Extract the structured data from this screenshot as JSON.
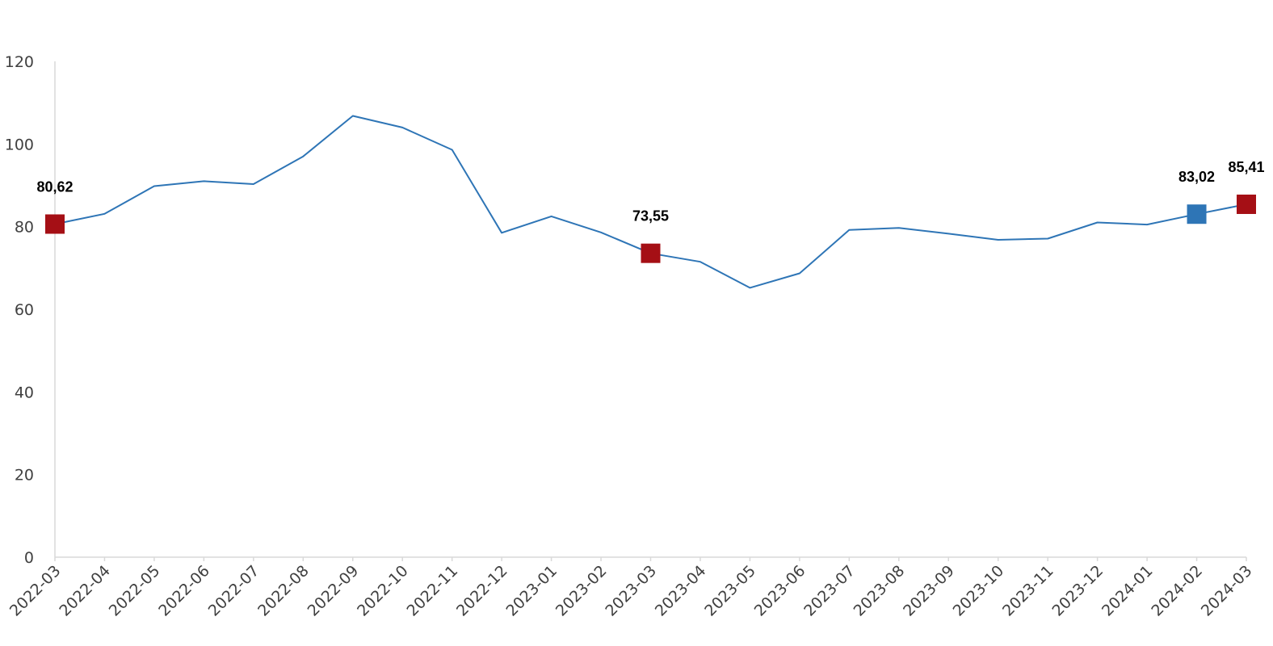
{
  "chart_data": {
    "type": "line",
    "title": "",
    "xlabel": "",
    "ylabel": "",
    "ylim": [
      0,
      120
    ],
    "yticks": [
      0,
      20,
      40,
      60,
      80,
      100,
      120
    ],
    "grid": false,
    "categories": [
      "2022-03",
      "2022-04",
      "2022-05",
      "2022-06",
      "2022-07",
      "2022-08",
      "2022-09",
      "2022-10",
      "2022-11",
      "2022-12",
      "2023-01",
      "2023-02",
      "2023-03",
      "2023-04",
      "2023-05",
      "2023-06",
      "2023-07",
      "2023-08",
      "2023-09",
      "2023-10",
      "2023-11",
      "2023-12",
      "2024-01",
      "2024-02",
      "2024-03"
    ],
    "series": [
      {
        "values": [
          80.62,
          83.1,
          89.8,
          91.0,
          90.3,
          97.0,
          106.8,
          104.0,
          98.6,
          78.5,
          82.5,
          78.6,
          73.55,
          71.5,
          65.2,
          68.7,
          79.2,
          79.7,
          78.3,
          76.8,
          77.1,
          81.0,
          80.5,
          83.02,
          85.41
        ],
        "color": "#2e75b6"
      }
    ],
    "markers": [
      {
        "index": 0,
        "color": "#a50f15",
        "label": "80,62"
      },
      {
        "index": 12,
        "color": "#a50f15",
        "label": "73,55"
      },
      {
        "index": 23,
        "color": "#2e75b6",
        "label": "83,02"
      },
      {
        "index": 24,
        "color": "#a50f15",
        "label": "85,41"
      }
    ]
  }
}
